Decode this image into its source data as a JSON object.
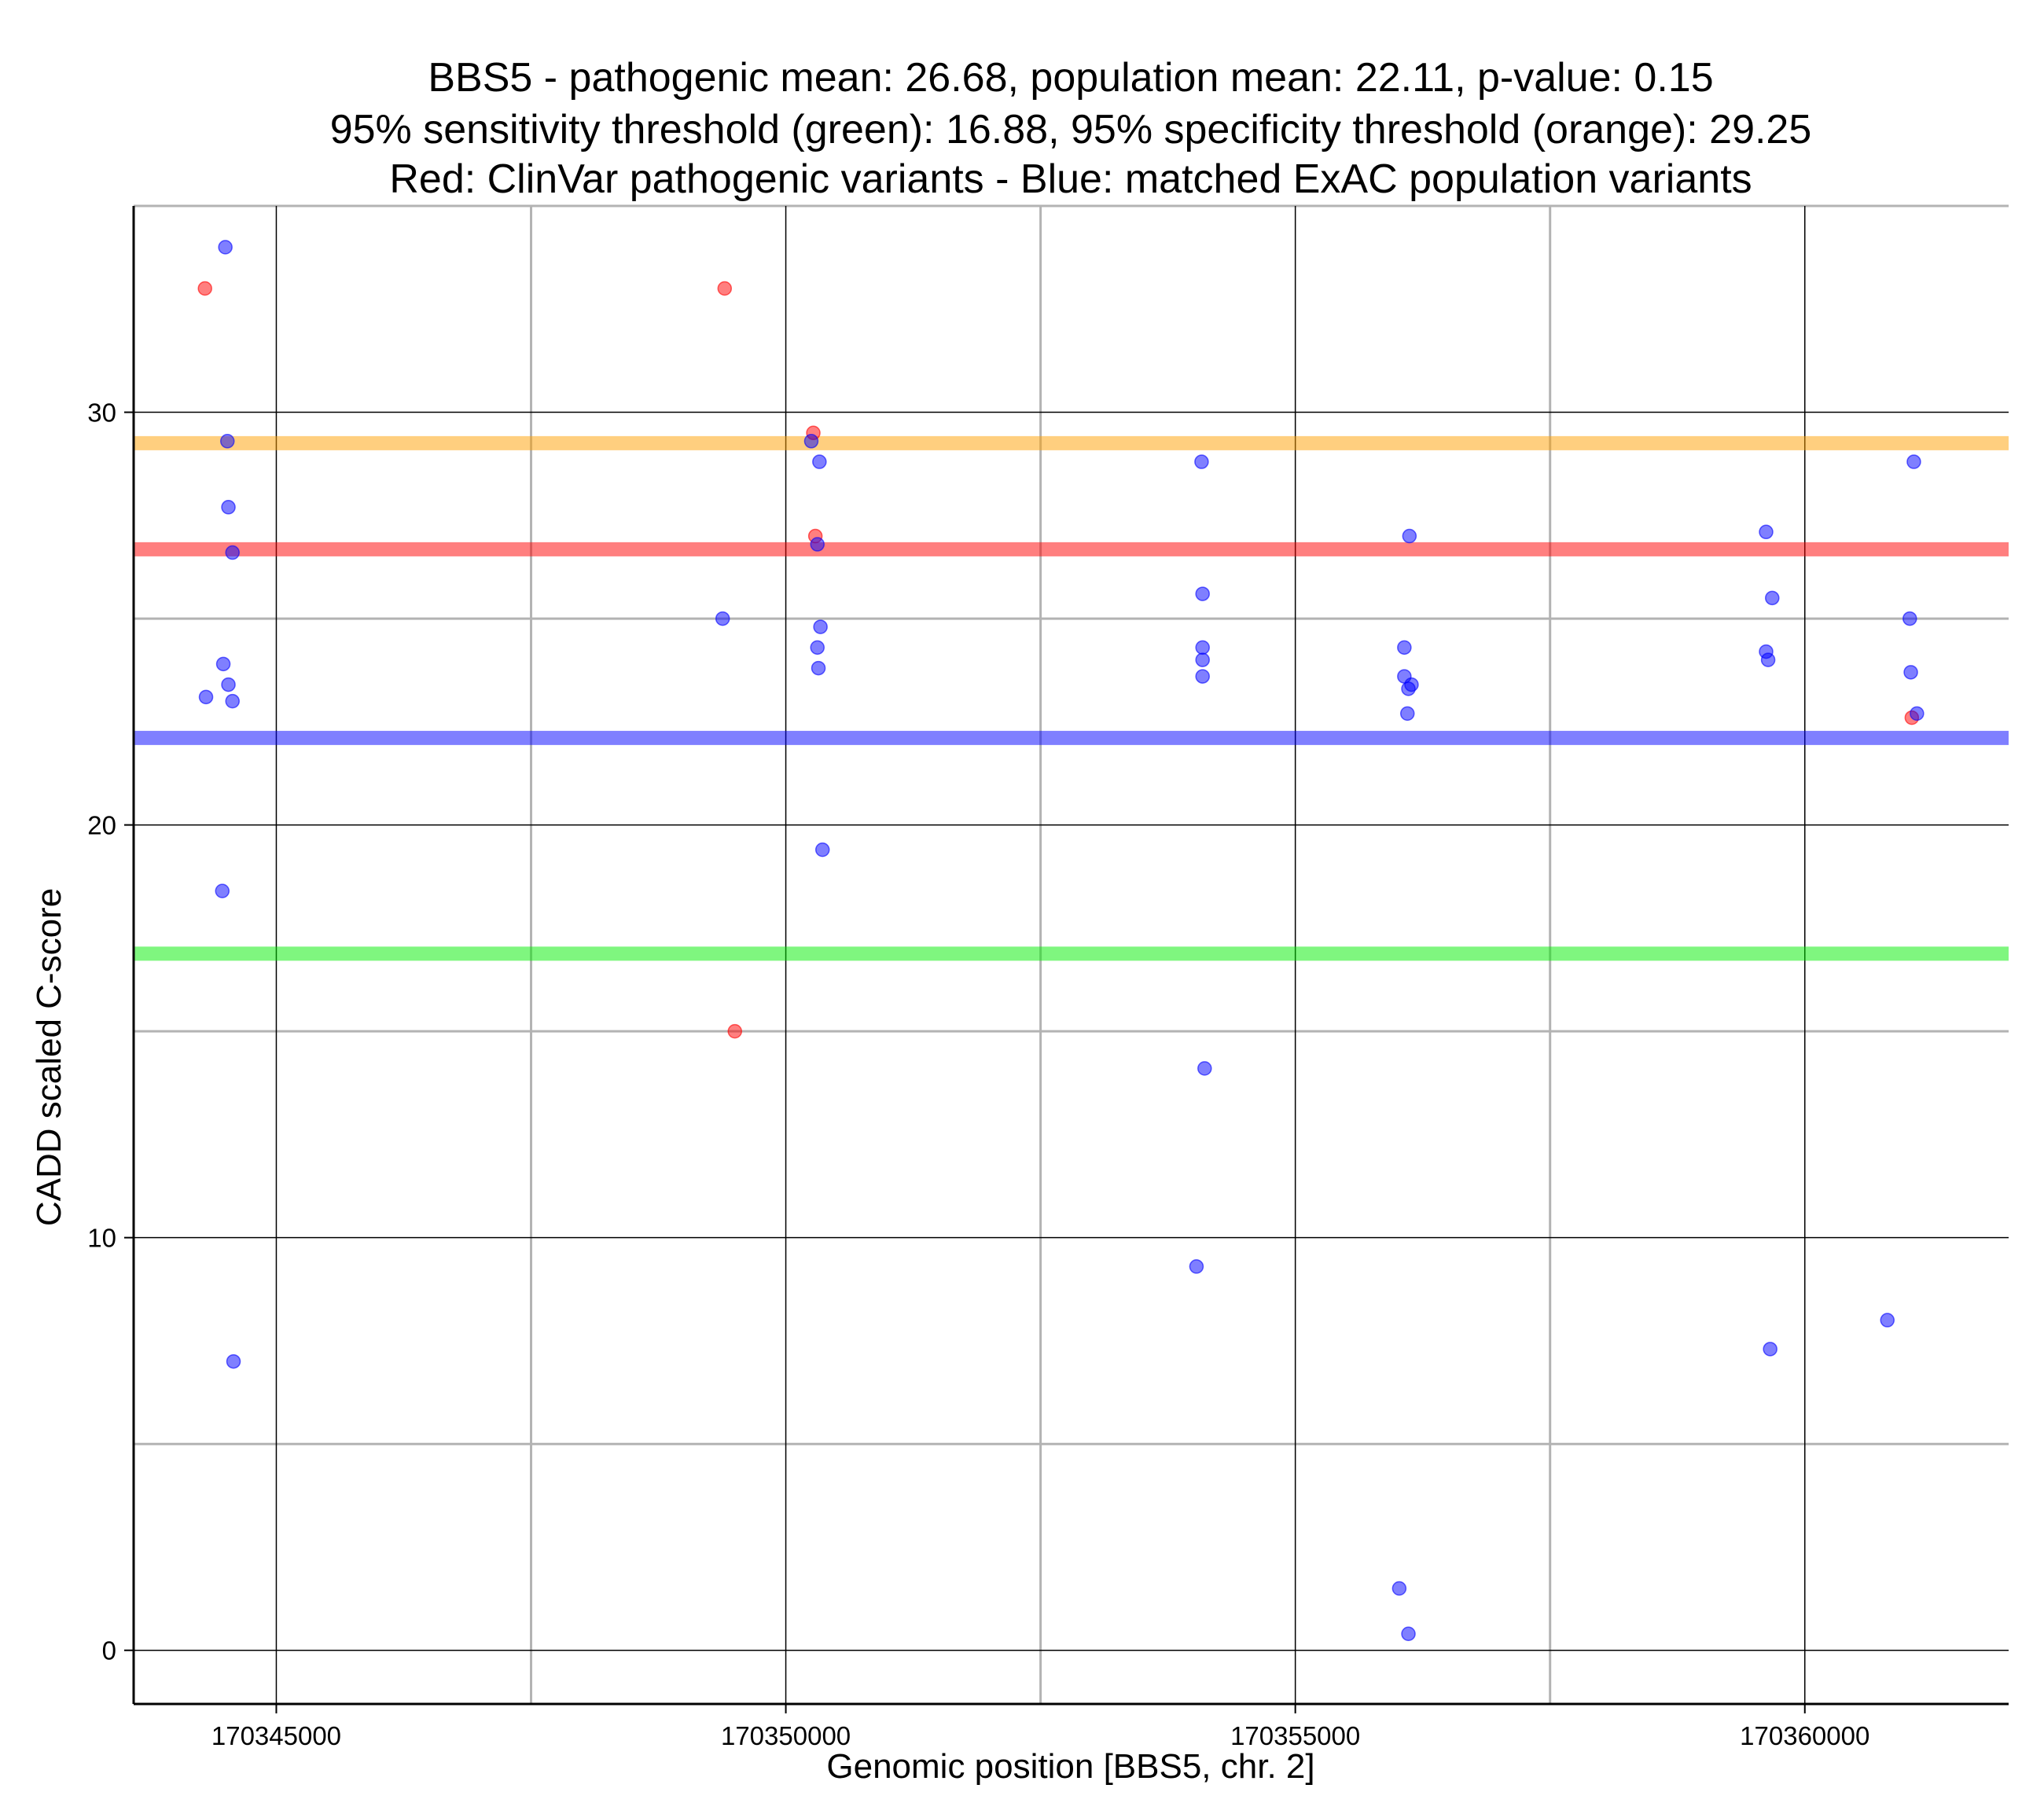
{
  "chart_data": {
    "type": "scatter",
    "title_lines": [
      "BBS5 - pathogenic mean: 26.68, population mean: 22.11, p-value: 0.15",
      "95% sensitivity threshold (green): 16.88, 95% specificity threshold (orange): 29.25",
      "Red: ClinVar pathogenic variants - Blue: matched ExAC population variants"
    ],
    "xlabel": "Genomic position [BBS5, chr. 2]",
    "ylabel": "CADD scaled C-score",
    "xlim": [
      170343600,
      170362000
    ],
    "ylim": [
      -1.3,
      35.0
    ],
    "x_ticks": [
      {
        "value": 170345000,
        "label": "170345000"
      },
      {
        "value": 170350000,
        "label": "170350000"
      },
      {
        "value": 170355000,
        "label": "170355000"
      },
      {
        "value": 170360000,
        "label": "170360000"
      }
    ],
    "x_minor_gridlines": [
      170347500,
      170352500,
      170357500
    ],
    "y_ticks": [
      {
        "value": 0,
        "label": "0"
      },
      {
        "value": 10,
        "label": "10"
      },
      {
        "value": 20,
        "label": "20"
      },
      {
        "value": 30,
        "label": "30"
      }
    ],
    "y_minor_gridlines": [
      5,
      15,
      25,
      35
    ],
    "colors": {
      "pathogenic": "#ff0000",
      "population": "#0000ff",
      "sensitivity": "#00ee00",
      "specificity": "#ffa000",
      "major_grid": "#000000",
      "minor_grid": "#b3b3b3"
    },
    "thresholds": [
      {
        "name": "specificity-threshold-line",
        "value": 29.25,
        "color": "#ffa000"
      },
      {
        "name": "pathogenic-mean-line",
        "value": 26.68,
        "color": "#ff0000"
      },
      {
        "name": "population-mean-line",
        "value": 22.11,
        "color": "#0000ff"
      },
      {
        "name": "sensitivity-threshold-line",
        "value": 16.88,
        "color": "#00ee00"
      }
    ],
    "series": [
      {
        "name": "ClinVar pathogenic variants",
        "color": "#ff0000",
        "points": [
          [
            170344300,
            33.0
          ],
          [
            170349400,
            33.0
          ],
          [
            170350270,
            29.5
          ],
          [
            170350290,
            27.0
          ],
          [
            170349500,
            15.0
          ],
          [
            170361050,
            22.6
          ]
        ]
      },
      {
        "name": "matched ExAC population variants",
        "color": "#0000ff",
        "points": [
          [
            170344500,
            34.0
          ],
          [
            170344520,
            29.3
          ],
          [
            170344530,
            27.7
          ],
          [
            170344570,
            26.6
          ],
          [
            170344480,
            23.9
          ],
          [
            170344530,
            23.4
          ],
          [
            170344310,
            23.1
          ],
          [
            170344570,
            23.0
          ],
          [
            170344470,
            18.4
          ],
          [
            170344580,
            7.0
          ],
          [
            170349380,
            25.0
          ],
          [
            170350250,
            29.3
          ],
          [
            170350330,
            28.8
          ],
          [
            170350310,
            26.8
          ],
          [
            170350340,
            24.8
          ],
          [
            170350310,
            24.3
          ],
          [
            170350320,
            23.8
          ],
          [
            170350360,
            19.4
          ],
          [
            170354080,
            28.8
          ],
          [
            170354090,
            25.6
          ],
          [
            170354090,
            24.3
          ],
          [
            170354090,
            24.0
          ],
          [
            170354090,
            23.6
          ],
          [
            170354110,
            14.1
          ],
          [
            170354030,
            9.3
          ],
          [
            170356120,
            27.0
          ],
          [
            170356070,
            24.3
          ],
          [
            170356070,
            23.6
          ],
          [
            170356140,
            23.4
          ],
          [
            170356110,
            23.3
          ],
          [
            170356100,
            22.7
          ],
          [
            170356020,
            1.5
          ],
          [
            170356110,
            0.4
          ],
          [
            170359620,
            27.1
          ],
          [
            170359680,
            25.5
          ],
          [
            170359620,
            24.2
          ],
          [
            170359640,
            24.0
          ],
          [
            170359660,
            7.3
          ],
          [
            170361070,
            28.8
          ],
          [
            170361030,
            25.0
          ],
          [
            170361040,
            23.7
          ],
          [
            170361100,
            22.7
          ],
          [
            170360810,
            8.0
          ]
        ]
      }
    ]
  }
}
